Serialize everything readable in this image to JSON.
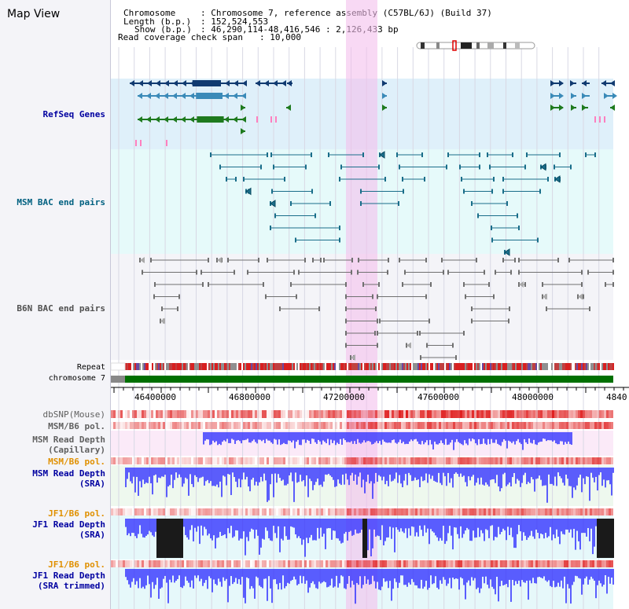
{
  "app": {
    "title": "Map View"
  },
  "header": {
    "chromosome_key": "Chromosome",
    "chromosome_value": ": Chromosome 7, reference assembly (C57BL/6J) (Build 37)",
    "length_key": "Length (b.p.)",
    "length_value": ": 152,524,553",
    "show_key": "Show (b.p.)",
    "show_value": ": 46,290,114-48,416,546 : 2,126,433 bp",
    "coverage_key": "Read coverage check span",
    "coverage_value": ": 10,000"
  },
  "tracks": {
    "refseq": "RefSeq Genes",
    "msm_bac": "MSM BAC end pairs",
    "b6n_bac": "B6N BAC end pairs",
    "repeat": "Repeat",
    "chromosome": "chromosome 7",
    "dbsnp": "dbSNP(Mouse)",
    "msm_b6_pol_1": "MSM/B6 pol.",
    "msm_depth_cap": "MSM Read Depth\n(Capillary)",
    "msm_b6_pol_2": "MSM/B6 pol.",
    "msm_depth_sra": "MSM Read Depth\n(SRA)",
    "jf1_b6_pol_1": "JF1/B6 pol.",
    "jf1_depth_sra": "JF1 Read Depth\n(SRA)",
    "jf1_b6_pol_2": "JF1/B6 pol.",
    "jf1_depth_trim": "JF1 Read Depth\n(SRA trimmed)"
  },
  "ruler": {
    "ticks": [
      "46400000",
      "46800000",
      "47200000",
      "47600000",
      "48000000",
      "4840"
    ]
  },
  "colors": {
    "refseq_bg": "#dff0fa",
    "msm_bac_bg": "#e6fafa",
    "b6n_bac_bg": "#f4f4f8",
    "highlight": "#f4c0ec",
    "gene_dark": "#103a70",
    "gene_mid": "#3a8ab8",
    "gene_green": "#1e7a1e",
    "msm_bac": "#1a6e8a",
    "b6n_bac": "#707070",
    "chromosome": "#007000",
    "depth_blue": "#2a2aff",
    "pol_red": "#e02020",
    "label_blue": "#0000a0",
    "label_teal": "#006080",
    "label_orange": "#e09000"
  }
}
